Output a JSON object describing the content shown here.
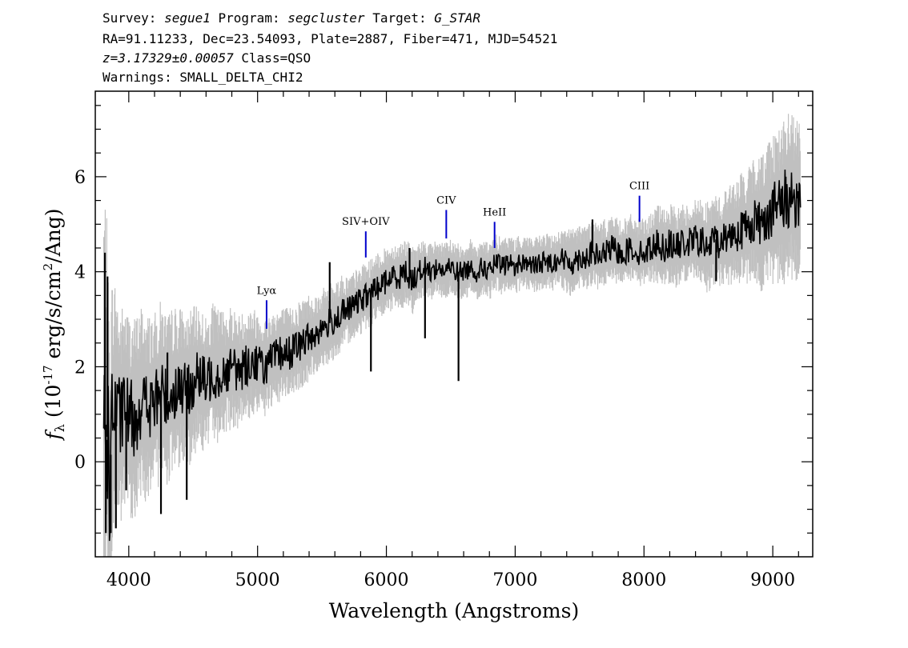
{
  "header": {
    "survey_label": "Survey:",
    "survey": "segue1",
    "program_label": "Program:",
    "program": "segcluster",
    "target_label": "Target:",
    "target": "G_STAR",
    "line2": "RA=91.11233, Dec=23.54093, Plate=2887, Fiber=471, MJD=54521",
    "z_value": "z=3.17329±0.00057",
    "class_text": "Class=QSO",
    "warnings": "Warnings: SMALL_DELTA_CHI2"
  },
  "chart_data": {
    "type": "line",
    "xlabel": "Wavelength (Angstroms)",
    "ylabel": "f_λ (10^-17 erg/s/cm^2/Ang)",
    "xlim": [
      3740,
      9310
    ],
    "ylim": [
      -2.0,
      7.8
    ],
    "xticks": [
      4000,
      5000,
      6000,
      7000,
      8000,
      9000
    ],
    "yticks": [
      0,
      2,
      4,
      6
    ],
    "grid": false,
    "colors": {
      "flux": "#000000",
      "error_band": "#c0c0c0",
      "line_marker": "#0000cc"
    },
    "series": [
      {
        "role": "flux",
        "x": [
          3810,
          3830,
          3850,
          3870,
          3900,
          3930,
          3960,
          4000,
          4050,
          4100,
          4150,
          4200,
          4250,
          4300,
          4350,
          4400,
          4450,
          4500,
          4550,
          4600,
          4650,
          4700,
          4750,
          4800,
          4850,
          4900,
          4950,
          5000,
          5050,
          5100,
          5150,
          5200,
          5250,
          5300,
          5350,
          5400,
          5450,
          5500,
          5550,
          5600,
          5650,
          5700,
          5750,
          5800,
          5850,
          5900,
          5950,
          6000,
          6050,
          6100,
          6150,
          6200,
          6250,
          6300,
          6350,
          6400,
          6450,
          6500,
          6550,
          6600,
          6650,
          6700,
          6750,
          6800,
          6850,
          6900,
          6950,
          7000,
          7050,
          7100,
          7150,
          7200,
          7250,
          7300,
          7350,
          7400,
          7450,
          7500,
          7550,
          7600,
          7650,
          7700,
          7750,
          7800,
          7850,
          7900,
          7950,
          8000,
          8050,
          8100,
          8150,
          8200,
          8250,
          8300,
          8350,
          8400,
          8450,
          8500,
          8550,
          8600,
          8650,
          8700,
          8750,
          8800,
          8850,
          8900,
          8950,
          9000,
          9050,
          9100,
          9150,
          9200
        ],
        "y": [
          0.6,
          0.9,
          -0.6,
          0.9,
          1.2,
          0.8,
          1.1,
          1.0,
          0.9,
          1.3,
          1.1,
          1.2,
          1.5,
          1.3,
          1.5,
          1.6,
          1.4,
          1.7,
          1.8,
          1.6,
          1.9,
          1.8,
          1.9,
          2.0,
          1.9,
          2.0,
          2.1,
          2.1,
          2.0,
          2.1,
          2.2,
          2.3,
          2.3,
          2.4,
          2.5,
          2.6,
          2.7,
          2.8,
          2.9,
          3.0,
          3.1,
          3.2,
          3.3,
          3.4,
          3.5,
          3.6,
          3.7,
          3.8,
          3.9,
          3.9,
          4.0,
          3.8,
          4.0,
          4.1,
          4.0,
          4.1,
          4.0,
          4.1,
          4.0,
          4.0,
          4.1,
          4.0,
          4.1,
          4.0,
          4.2,
          4.1,
          4.2,
          4.1,
          4.2,
          4.2,
          4.1,
          4.2,
          4.2,
          4.2,
          4.3,
          4.2,
          4.2,
          4.3,
          4.3,
          4.4,
          4.3,
          4.4,
          4.5,
          4.4,
          4.4,
          4.5,
          4.4,
          4.4,
          4.5,
          4.6,
          4.5,
          4.6,
          4.5,
          4.6,
          4.6,
          4.7,
          4.6,
          4.5,
          4.7,
          4.6,
          4.8,
          4.8,
          4.9,
          4.9,
          5.1,
          5.0,
          5.2,
          5.3,
          5.4,
          5.5,
          5.6,
          5.5
        ],
        "spikes": [
          {
            "x": 3815,
            "y": 4.4
          },
          {
            "x": 3822,
            "y": -1.5
          },
          {
            "x": 3835,
            "y": 3.9
          },
          {
            "x": 3860,
            "y": -1.5
          },
          {
            "x": 3900,
            "y": -1.4
          },
          {
            "x": 3980,
            "y": -0.6
          },
          {
            "x": 4250,
            "y": -1.1
          },
          {
            "x": 4300,
            "y": 2.3
          },
          {
            "x": 4450,
            "y": -0.8
          },
          {
            "x": 5560,
            "y": 4.2
          },
          {
            "x": 5880,
            "y": 1.9
          },
          {
            "x": 6180,
            "y": 4.5
          },
          {
            "x": 6300,
            "y": 2.6
          },
          {
            "x": 6560,
            "y": 1.7
          },
          {
            "x": 7600,
            "y": 5.1
          },
          {
            "x": 8560,
            "y": 3.8
          },
          {
            "x": 9100,
            "y": 6.0
          }
        ]
      },
      {
        "role": "error_band",
        "noise_amplitude": [
          4.5,
          3.5,
          3.0,
          2.5,
          2.2,
          2.0,
          1.9,
          1.8,
          1.8,
          1.7,
          1.7,
          1.6,
          1.6,
          1.5,
          1.5,
          1.4,
          1.4,
          1.3,
          1.3,
          1.2,
          1.2,
          1.2,
          1.1,
          1.1,
          1.0,
          1.0,
          1.0,
          0.9,
          0.9,
          0.9,
          0.9,
          0.8,
          0.8,
          0.8,
          0.8,
          0.8,
          0.7,
          0.7,
          0.7,
          0.7,
          0.7,
          0.6,
          0.6,
          0.6,
          0.6,
          0.6,
          0.6,
          0.6,
          0.6,
          0.6,
          0.6,
          0.6,
          0.5,
          0.5,
          0.5,
          0.5,
          0.5,
          0.5,
          0.5,
          0.5,
          0.5,
          0.5,
          0.5,
          0.5,
          0.5,
          0.5,
          0.5,
          0.5,
          0.5,
          0.5,
          0.5,
          0.5,
          0.5,
          0.5,
          0.5,
          0.6,
          0.6,
          0.6,
          0.6,
          0.6,
          0.6,
          0.6,
          0.6,
          0.6,
          0.6,
          0.6,
          0.6,
          0.6,
          0.6,
          0.7,
          0.7,
          0.7,
          0.7,
          0.7,
          0.7,
          0.7,
          0.8,
          0.8,
          0.8,
          0.8,
          0.9,
          0.9,
          1.0,
          1.0,
          1.1,
          1.2,
          1.3,
          1.4,
          1.4,
          1.5,
          1.5,
          1.4
        ]
      }
    ],
    "emission_lines": [
      {
        "label": "Lyα",
        "x": 5070,
        "y_bottom": 2.8,
        "y_top": 3.4
      },
      {
        "label": "SIV+OIV",
        "x": 5840,
        "y_bottom": 4.3,
        "y_top": 4.85
      },
      {
        "label": "CIV",
        "x": 6465,
        "y_bottom": 4.7,
        "y_top": 5.3
      },
      {
        "label": "HeII",
        "x": 6840,
        "y_bottom": 4.5,
        "y_top": 5.05
      },
      {
        "label": "CIII",
        "x": 7965,
        "y_bottom": 5.05,
        "y_top": 5.6
      }
    ]
  }
}
